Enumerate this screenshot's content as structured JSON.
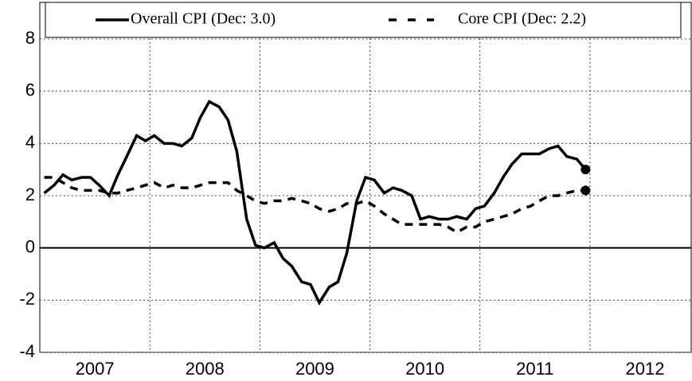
{
  "chart_data": {
    "type": "line",
    "x": [
      2007.04,
      2007.13,
      2007.21,
      2007.29,
      2007.38,
      2007.46,
      2007.54,
      2007.63,
      2007.71,
      2007.79,
      2007.88,
      2007.96,
      2008.04,
      2008.13,
      2008.21,
      2008.29,
      2008.38,
      2008.46,
      2008.54,
      2008.63,
      2008.71,
      2008.79,
      2008.88,
      2008.96,
      2009.04,
      2009.13,
      2009.21,
      2009.29,
      2009.38,
      2009.46,
      2009.54,
      2009.63,
      2009.71,
      2009.79,
      2009.88,
      2009.96,
      2010.04,
      2010.13,
      2010.21,
      2010.29,
      2010.38,
      2010.46,
      2010.54,
      2010.63,
      2010.71,
      2010.79,
      2010.88,
      2010.96,
      2011.04,
      2011.13,
      2011.21,
      2011.29,
      2011.38,
      2011.46,
      2011.54,
      2011.63,
      2011.71,
      2011.79,
      2011.88,
      2011.96
    ],
    "series": [
      {
        "name": "Overall CPI (Dec: 3.0)",
        "color": "#000000",
        "line_style": "solid",
        "end_marker": true,
        "values": [
          2.1,
          2.4,
          2.8,
          2.6,
          2.7,
          2.7,
          2.4,
          2.0,
          2.8,
          3.5,
          4.3,
          4.1,
          4.3,
          4.0,
          4.0,
          3.9,
          4.2,
          5.0,
          5.6,
          5.4,
          4.9,
          3.7,
          1.1,
          0.1,
          0.0,
          0.2,
          -0.4,
          -0.7,
          -1.3,
          -1.4,
          -2.1,
          -1.5,
          -1.3,
          -0.2,
          1.8,
          2.7,
          2.6,
          2.1,
          2.3,
          2.2,
          2.0,
          1.1,
          1.2,
          1.1,
          1.1,
          1.2,
          1.1,
          1.5,
          1.6,
          2.1,
          2.7,
          3.2,
          3.6,
          3.6,
          3.6,
          3.8,
          3.9,
          3.5,
          3.4,
          3.0
        ]
      },
      {
        "name": "Core CPI (Dec: 2.2)",
        "color": "#000000",
        "line_style": "dashed",
        "end_marker": true,
        "values": [
          2.7,
          2.7,
          2.5,
          2.3,
          2.2,
          2.2,
          2.2,
          2.1,
          2.1,
          2.2,
          2.3,
          2.4,
          2.5,
          2.3,
          2.4,
          2.3,
          2.3,
          2.4,
          2.5,
          2.5,
          2.5,
          2.2,
          2.0,
          1.8,
          1.7,
          1.8,
          1.8,
          1.9,
          1.8,
          1.7,
          1.5,
          1.4,
          1.5,
          1.7,
          1.7,
          1.8,
          1.6,
          1.3,
          1.1,
          0.9,
          0.9,
          0.9,
          0.9,
          0.9,
          0.8,
          0.6,
          0.8,
          0.8,
          1.0,
          1.1,
          1.2,
          1.3,
          1.5,
          1.6,
          1.8,
          2.0,
          2.0,
          2.1,
          2.2,
          2.2
        ]
      }
    ],
    "xlim": [
      2007,
      2012.92
    ],
    "xticks": [
      2007,
      2008,
      2009,
      2010,
      2011,
      2012
    ],
    "ylim": [
      -4,
      9.4
    ],
    "yticks": [
      -4,
      -2,
      0,
      2,
      4,
      6,
      8
    ],
    "grid": true,
    "legend": "top"
  }
}
